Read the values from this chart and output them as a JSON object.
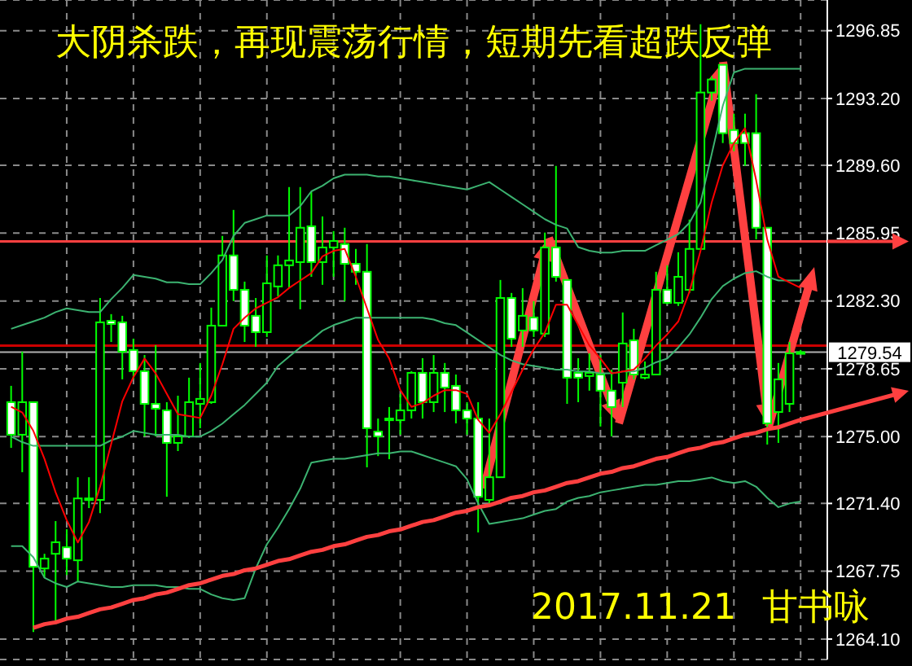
{
  "chart_data": {
    "type": "candlestick",
    "title": "大阴杀跌，再现震荡行情，短期先看超跌反弹",
    "annotations": [
      "2017.11.21",
      "甘书咏"
    ],
    "categories": [
      null,
      null,
      null,
      null,
      null,
      null,
      null,
      null,
      null,
      null,
      null,
      null,
      null,
      null,
      null,
      null,
      null,
      null,
      null,
      null,
      null,
      null,
      null,
      null,
      null,
      null,
      null,
      null,
      null,
      null,
      null,
      null,
      null,
      null,
      null,
      null,
      null,
      null,
      null,
      null,
      null,
      null,
      null,
      null,
      null,
      null,
      null,
      null,
      null,
      null,
      null,
      null,
      null,
      null,
      null,
      null,
      null,
      null,
      null,
      null,
      null,
      null,
      null,
      null,
      null,
      null,
      null,
      null,
      null,
      null,
      null,
      null
    ],
    "color": "#00ff00",
    "ohlc": [
      [
        1276.85,
        1277.73,
        1274.39,
        1275.1
      ],
      [
        1275.1,
        1279.57,
        1273.08,
        1276.85
      ],
      [
        1276.85,
        1276.85,
        1264.48,
        1267.99
      ],
      [
        1267.9,
        1268.69,
        1267.38,
        1268.43
      ],
      [
        1268.69,
        1270.45,
        1264.92,
        1269.31
      ],
      [
        1269.04,
        1270.01,
        1267.55,
        1268.43
      ],
      [
        1268.34,
        1272.81,
        1267.2,
        1271.67
      ],
      [
        1271.67,
        1272.81,
        1271.15,
        1271.59
      ],
      [
        1271.59,
        1282.46,
        1270.88,
        1281.15
      ],
      [
        1281.23,
        1281.59,
        1280.09,
        1281.06
      ],
      [
        1281.15,
        1281.5,
        1278.08,
        1279.57
      ],
      [
        1279.66,
        1280.27,
        1278.08,
        1278.52
      ],
      [
        1278.52,
        1279.39,
        1275.01,
        1276.76
      ],
      [
        1276.76,
        1279.92,
        1275.01,
        1276.5
      ],
      [
        1276.41,
        1276.85,
        1271.76,
        1274.66
      ],
      [
        1274.66,
        1277.2,
        1274.22,
        1275.01
      ],
      [
        1275.01,
        1278.17,
        1274.92,
        1276.85
      ],
      [
        1276.76,
        1278.96,
        1275.45,
        1277.03
      ],
      [
        1276.85,
        1281.94,
        1276.76,
        1280.97
      ],
      [
        1280.97,
        1285.8,
        1280.97,
        1284.75
      ],
      [
        1284.75,
        1287.2,
        1282.29,
        1282.9
      ],
      [
        1282.9,
        1283.34,
        1280.09,
        1280.97
      ],
      [
        1281.5,
        1282.46,
        1279.83,
        1280.62
      ],
      [
        1280.62,
        1284.75,
        1280.36,
        1283.25
      ],
      [
        1283.08,
        1284.75,
        1282.55,
        1284.22
      ],
      [
        1284.22,
        1288.43,
        1282.99,
        1284.48
      ],
      [
        1284.39,
        1288.43,
        1281.85,
        1286.24
      ],
      [
        1286.32,
        1288.17,
        1283.6,
        1284.39
      ],
      [
        1284.39,
        1286.85,
        1283.17,
        1285.18
      ],
      [
        1285.18,
        1286.06,
        1283.6,
        1285.53
      ],
      [
        1285.36,
        1286.24,
        1282.29,
        1284.3
      ],
      [
        1284.3,
        1285.1,
        1283.17,
        1283.87
      ],
      [
        1283.87,
        1285.36,
        1273.34,
        1275.45
      ],
      [
        1275.27,
        1275.97,
        1273.95,
        1275.01
      ],
      [
        1275.88,
        1276.59,
        1273.78,
        1275.97
      ],
      [
        1275.88,
        1277.29,
        1275.1,
        1276.41
      ],
      [
        1276.41,
        1278.52,
        1275.97,
        1278.43
      ],
      [
        1278.43,
        1279.22,
        1275.97,
        1276.85
      ],
      [
        1276.85,
        1279.39,
        1276.32,
        1278.43
      ],
      [
        1278.43,
        1278.96,
        1276.32,
        1277.64
      ],
      [
        1277.73,
        1278.34,
        1275.71,
        1276.41
      ],
      [
        1276.41,
        1276.85,
        1275.1,
        1275.97
      ],
      [
        1275.97,
        1276.85,
        1269.84,
        1271.76
      ],
      [
        1271.59,
        1275.97,
        1271.33,
        1272.81
      ],
      [
        1272.81,
        1283.43,
        1272.81,
        1282.46
      ],
      [
        1282.46,
        1282.73,
        1279.83,
        1280.27
      ],
      [
        1280.71,
        1282.99,
        1279.83,
        1281.5
      ],
      [
        1281.41,
        1282.29,
        1280.36,
        1280.71
      ],
      [
        1280.54,
        1285.98,
        1280.36,
        1285.18
      ],
      [
        1285.18,
        1289.57,
        1283.34,
        1283.6
      ],
      [
        1283.43,
        1283.43,
        1276.76,
        1278.17
      ],
      [
        1278.43,
        1279.22,
        1276.85,
        1278.17
      ],
      [
        1278.26,
        1279.48,
        1277.47,
        1278.43
      ],
      [
        1278.34,
        1279.39,
        1275.54,
        1277.47
      ],
      [
        1277.47,
        1278.6,
        1275.01,
        1276.59
      ],
      [
        1277.9,
        1281.68,
        1276.59,
        1280.01
      ],
      [
        1280.18,
        1280.8,
        1278.08,
        1278.34
      ],
      [
        1278.17,
        1279.04,
        1278.08,
        1278.34
      ],
      [
        1278.34,
        1283.87,
        1278.34,
        1282.9
      ],
      [
        1282.9,
        1284.22,
        1282.12,
        1282.2
      ],
      [
        1282.2,
        1284.92,
        1282.03,
        1283.6
      ],
      [
        1282.9,
        1286.68,
        1282.73,
        1285.1
      ],
      [
        1285.1,
        1297.2,
        1285.1,
        1293.52
      ],
      [
        1293.52,
        1294.4,
        1293.08,
        1294.22
      ],
      [
        1295.01,
        1295.01,
        1290.8,
        1291.33
      ],
      [
        1291.5,
        1292.38,
        1290.36,
        1290.8
      ],
      [
        1291.33,
        1292.38,
        1289.57,
        1290.8
      ],
      [
        1291.33,
        1293.43,
        1285.62,
        1286.24
      ],
      [
        1286.24,
        1286.24,
        1274.57,
        1275.71
      ],
      [
        1276.32,
        1278.96,
        1274.66,
        1278.08
      ],
      [
        1276.76,
        1280.09,
        1276.32,
        1279.48
      ],
      [
        1279.48,
        1279.66,
        1279.48,
        1279.54
      ]
    ],
    "series": [
      {
        "type": "line",
        "color": "#3cb371",
        "values": [
          1280.8,
          1281.0,
          1281.2,
          1281.4,
          1281.7,
          1281.9,
          1281.8,
          1281.7,
          1281.7,
          1282.4,
          1283.0,
          1283.7,
          1283.6,
          1283.5,
          1283.3,
          1283.3,
          1283.2,
          1283.2,
          1283.8,
          1284.5,
          1285.8,
          1286.5,
          1286.7,
          1286.9,
          1286.9,
          1286.9,
          1287.4,
          1288.2,
          1288.5,
          1288.9,
          1289.1,
          1289.1,
          1289.1,
          1289.0,
          1289.0,
          1288.9,
          1288.8,
          1288.7,
          1288.6,
          1288.5,
          1288.4,
          1288.3,
          1288.5,
          1288.7,
          1288.3,
          1287.9,
          1287.5,
          1287.1,
          1286.7,
          1286.4,
          1286.2,
          1285.2,
          1285.0,
          1284.9,
          1284.9,
          1285.0,
          1285.0,
          1285.0,
          1285.3,
          1285.6,
          1285.9,
          1286.5,
          1287.6,
          1290.2,
          1292.8,
          1294.6,
          1294.8,
          1294.8,
          1294.8,
          1294.8,
          1294.8,
          1294.8
        ]
      },
      {
        "type": "line",
        "color": "#3cb371",
        "values": [
          1275.0,
          1274.7,
          1274.5,
          1274.5,
          1274.5,
          1274.5,
          1274.5,
          1274.5,
          1274.5,
          1274.8,
          1275.0,
          1275.3,
          1275.2,
          1275.1,
          1275.1,
          1275.1,
          1275.0,
          1275.0,
          1275.3,
          1275.7,
          1276.2,
          1276.7,
          1277.3,
          1277.9,
          1278.8,
          1279.3,
          1279.8,
          1280.2,
          1280.7,
          1281.0,
          1281.2,
          1281.4,
          1281.4,
          1281.4,
          1281.4,
          1281.4,
          1281.4,
          1281.4,
          1281.3,
          1281.1,
          1281.0,
          1280.6,
          1280.2,
          1279.8,
          1279.4,
          1279.1,
          1278.9,
          1278.8,
          1278.7,
          1278.6,
          1278.6,
          1278.5,
          1278.5,
          1278.4,
          1278.4,
          1278.5,
          1278.5,
          1278.7,
          1279.0,
          1279.2,
          1279.8,
          1280.5,
          1281.4,
          1282.4,
          1283.1,
          1283.5,
          1283.8,
          1283.9,
          1283.6,
          1283.4,
          1283.4,
          1283.4
        ]
      },
      {
        "type": "line",
        "color": "#3cb371",
        "values": [
          1269.1,
          1269.1,
          1268.5,
          1267.4,
          1267.1,
          1266.9,
          1267.2,
          1267.1,
          1267.0,
          1266.9,
          1266.9,
          1267.0,
          1267.0,
          1267.0,
          1266.9,
          1266.9,
          1266.8,
          1266.8,
          1266.5,
          1266.3,
          1266.2,
          1266.3,
          1267.9,
          1269.2,
          1270.1,
          1271.1,
          1272.2,
          1273.6,
          1273.7,
          1273.8,
          1273.8,
          1273.9,
          1274.0,
          1274.1,
          1274.1,
          1274.2,
          1274.2,
          1274.0,
          1273.8,
          1273.6,
          1273.4,
          1272.7,
          1271.4,
          1270.3,
          1270.4,
          1270.5,
          1270.6,
          1270.8,
          1271.0,
          1271.1,
          1271.5,
          1271.7,
          1271.8,
          1272.0,
          1272.1,
          1272.2,
          1272.3,
          1272.4,
          1272.4,
          1272.5,
          1272.6,
          1272.6,
          1272.7,
          1272.8,
          1272.6,
          1272.5,
          1272.6,
          1272.3,
          1271.7,
          1271.2,
          1271.4,
          1271.5
        ]
      },
      {
        "type": "line",
        "color": "#ff0000",
        "values": [
          1276.6,
          1276.3,
          1275.3,
          1273.8,
          1272.0,
          1270.5,
          1269.3,
          1270.4,
          1272.3,
          1274.6,
          1276.9,
          1278.2,
          1279.2,
          1278.4,
          1277.3,
          1276.2,
          1276.1,
          1276.0,
          1277.2,
          1278.9,
          1280.8,
          1281.4,
          1281.9,
          1282.2,
          1282.5,
          1283.0,
          1283.4,
          1283.8,
          1284.7,
          1285.0,
          1285.1,
          1283.6,
          1281.9,
          1280.2,
          1279.2,
          1277.5,
          1276.6,
          1276.8,
          1277.2,
          1277.5,
          1277.5,
          1277.3,
          1275.9,
          1275.2,
          1276.2,
          1277.4,
          1278.6,
          1279.7,
          1280.6,
          1282.1,
          1282.1,
          1281.0,
          1279.9,
          1279.2,
          1278.4,
          1278.5,
          1278.6,
          1279.2,
          1279.9,
          1280.5,
          1281.2,
          1282.8,
          1285.0,
          1287.6,
          1289.6,
          1290.8,
          1291.6,
          1288.8,
          1285.6,
          1283.6,
          1283.3,
          1283.0
        ]
      },
      {
        "type": "line",
        "color": "#ff4040",
        "values": [
          null,
          null,
          1264.7,
          1264.9,
          1265.0,
          1265.2,
          1265.3,
          1265.5,
          1265.7,
          1265.8,
          1266.0,
          1266.2,
          1266.3,
          1266.5,
          1266.6,
          1266.8,
          1267.0,
          1267.1,
          1267.3,
          1267.5,
          1267.6,
          1267.8,
          1267.9,
          1268.1,
          1268.3,
          1268.4,
          1268.6,
          1268.8,
          1268.9,
          1269.1,
          1269.2,
          1269.4,
          1269.6,
          1269.7,
          1269.9,
          1270.0,
          1270.2,
          1270.4,
          1270.5,
          1270.7,
          1270.9,
          1271.0,
          1271.2,
          1271.3,
          1271.5,
          1271.7,
          1271.8,
          1272.0,
          1272.1,
          1272.3,
          1272.5,
          1272.6,
          1272.8,
          1273.0,
          1273.1,
          1273.3,
          1273.4,
          1273.6,
          1273.8,
          1273.9,
          1274.1,
          1274.3,
          1274.4,
          1274.6,
          1274.7,
          1274.9,
          1275.1,
          1275.2,
          1275.4,
          1275.5,
          1275.7,
          1275.9
        ]
      }
    ],
    "ref_lines": [
      {
        "axis": "y",
        "value": 1285.5,
        "color": "#ff4040"
      },
      {
        "axis": "y",
        "value": 1279.9,
        "color": "#cc0000"
      },
      {
        "axis": "y",
        "value": 1279.54,
        "label": "1279.54",
        "color": "#b0b0b0"
      }
    ],
    "ylim": [
      1263.0,
      1298.5
    ],
    "yticks": [
      1296.85,
      {
        "value": 1293.2,
        "label": "1293.20"
      },
      {
        "value": 1289.6,
        "label": "1289.60"
      },
      1285.95,
      {
        "value": 1282.3,
        "label": "1282.30"
      },
      1278.65,
      {
        "value": 1275,
        "label": "1275.00"
      },
      {
        "value": 1271.4,
        "label": "1271.40"
      },
      1267.75,
      {
        "value": 1264.1,
        "label": "1264.10"
      }
    ],
    "grid": true
  }
}
